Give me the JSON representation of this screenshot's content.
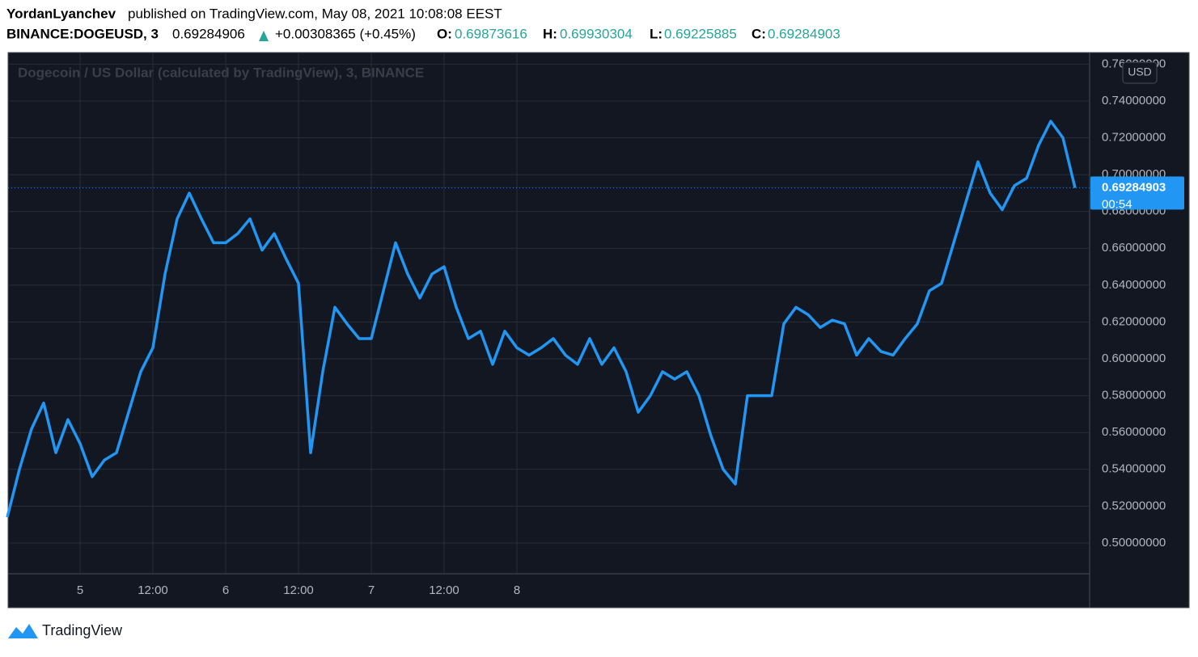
{
  "header": {
    "author": "YordanLyanchev",
    "published": "published on TradingView.com, May 08, 2021 10:08:08 EEST",
    "symbol": "BINANCE:DOGEUSD, 3",
    "last": "0.69284906",
    "change": "+0.00308365 (+0.45%)",
    "open_key": "O:",
    "open": "0.69873616",
    "high_key": "H:",
    "high": "0.69930304",
    "low_key": "L:",
    "low": "0.69225885",
    "close_key": "C:",
    "close": "0.69284903"
  },
  "footer": {
    "brand": "TradingView"
  },
  "chart_data": {
    "type": "line",
    "title": "Dogecoin / US Dollar (calculated by TradingView), 3, BINANCE",
    "currency": "USD",
    "categories": [
      null,
      null,
      null,
      null,
      null,
      null,
      "5",
      null,
      null,
      null,
      null,
      null,
      "12:00",
      null,
      null,
      null,
      null,
      null,
      "6",
      null,
      null,
      null,
      null,
      null,
      "12:00",
      null,
      null,
      null,
      null,
      null,
      "7",
      null,
      null,
      null,
      null,
      null,
      "12:00",
      null,
      null,
      null,
      null,
      null,
      "8",
      null,
      null,
      null,
      null,
      null,
      null,
      null,
      null,
      null,
      null,
      null,
      null,
      null,
      null,
      null,
      null,
      null,
      null,
      null,
      null,
      null,
      null,
      null,
      null,
      null,
      null,
      null,
      null,
      null,
      null,
      null,
      null,
      null,
      null,
      null,
      null,
      null,
      null,
      null,
      null,
      null,
      null,
      null,
      null,
      null,
      null
    ],
    "series": [
      {
        "name": "DOGEUSD",
        "color": "#2196f3",
        "values": [
          0.514,
          0.54,
          0.562,
          0.576,
          0.549,
          0.567,
          0.554,
          0.536,
          0.545,
          0.549,
          0.571,
          0.593,
          0.606,
          0.646,
          0.676,
          0.69,
          0.676,
          0.663,
          0.663,
          0.668,
          0.676,
          0.659,
          0.668,
          0.654,
          0.641,
          0.549,
          0.593,
          0.628,
          0.619,
          0.611,
          0.611,
          0.637,
          0.663,
          0.646,
          0.633,
          0.646,
          0.65,
          0.628,
          0.611,
          0.615,
          0.597,
          0.615,
          0.606,
          0.602,
          0.606,
          0.611,
          0.602,
          0.597,
          0.611,
          0.597,
          0.606,
          0.593,
          0.571,
          0.58,
          0.593,
          0.589,
          0.593,
          0.58,
          0.558,
          0.54,
          0.532,
          0.58,
          0.58,
          0.58,
          0.619,
          0.628,
          0.624,
          0.617,
          0.621,
          0.619,
          0.602,
          0.611,
          0.604,
          0.602,
          0.611,
          0.619,
          0.637,
          0.641,
          0.663,
          0.685,
          0.707,
          0.69,
          0.681,
          0.694,
          0.698,
          0.716,
          0.729,
          0.72,
          0.69284903
        ]
      }
    ],
    "last_price": 0.69284903,
    "countdown": "00:54",
    "ylim": [
      0.4833,
      0.7663
    ],
    "yticks": [
      {
        "value": 0.5,
        "label": "0.50000000"
      },
      {
        "value": 0.52,
        "label": "0.52000000"
      },
      {
        "value": 0.54,
        "label": "0.54000000"
      },
      {
        "value": 0.56,
        "label": "0.56000000"
      },
      {
        "value": 0.58,
        "label": "0.58000000"
      },
      {
        "value": 0.6,
        "label": "0.60000000"
      },
      {
        "value": 0.62,
        "label": "0.62000000"
      },
      {
        "value": 0.64,
        "label": "0.64000000"
      },
      {
        "value": 0.66,
        "label": "0.66000000"
      },
      {
        "value": 0.68,
        "label": "0.68000000"
      },
      {
        "value": 0.7,
        "label": "0.70000000"
      },
      {
        "value": 0.72,
        "label": "0.72000000"
      },
      {
        "value": 0.74,
        "label": "0.74000000"
      },
      {
        "value": 0.76,
        "label": "0.76000000"
      }
    ],
    "grid": true
  }
}
